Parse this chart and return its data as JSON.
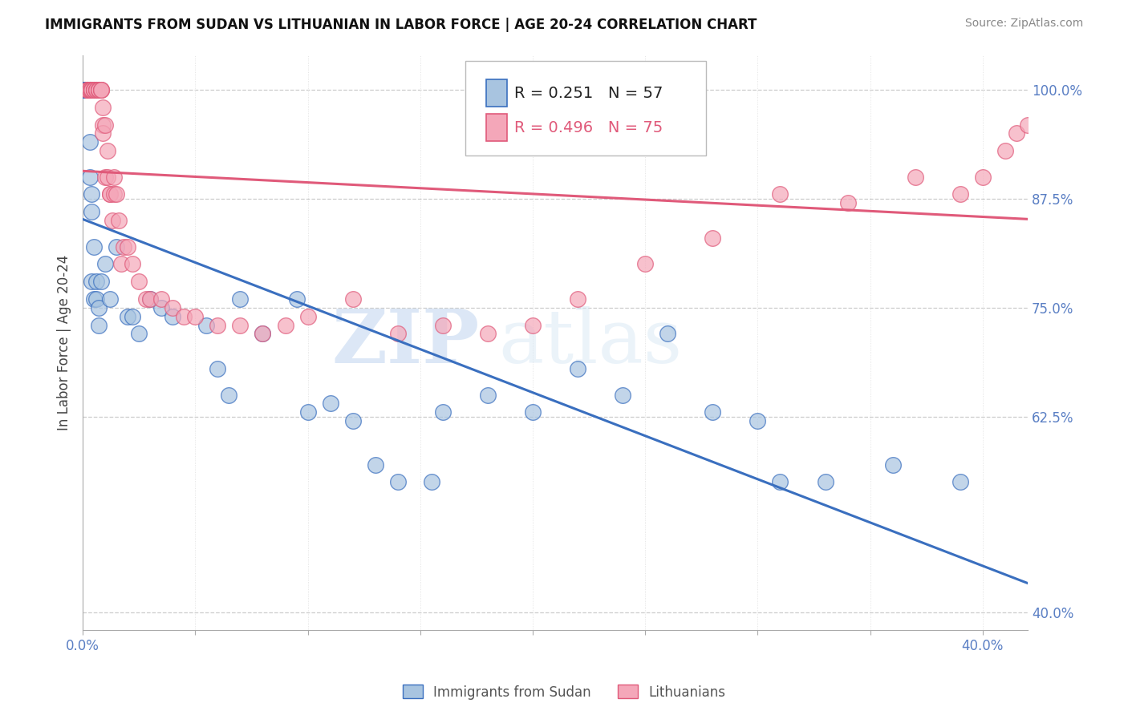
{
  "title": "IMMIGRANTS FROM SUDAN VS LITHUANIAN IN LABOR FORCE | AGE 20-24 CORRELATION CHART",
  "source": "Source: ZipAtlas.com",
  "ylabel": "In Labor Force | Age 20-24",
  "y_tick_labels_right": [
    "40.0%",
    "62.5%",
    "75.0%",
    "87.5%",
    "100.0%"
  ],
  "xlim": [
    0.0,
    0.42
  ],
  "ylim": [
    0.38,
    1.04
  ],
  "yticks_right": [
    0.4,
    0.625,
    0.75,
    0.875,
    1.0
  ],
  "xticks": [
    0.0,
    0.05,
    0.1,
    0.15,
    0.2,
    0.25,
    0.3,
    0.35,
    0.4
  ],
  "legend_r1": "0.251",
  "legend_n1": "57",
  "legend_r2": "0.496",
  "legend_n2": "75",
  "label1": "Immigrants from Sudan",
  "label2": "Lithuanians",
  "color1": "#a8c4e0",
  "color2": "#f4a7b9",
  "line_color1": "#3a6fbf",
  "line_color2": "#e05a7a",
  "axis_color": "#5a7fc4",
  "watermark_zip": "ZIP",
  "watermark_atlas": "atlas",
  "sudan_x": [
    0.001,
    0.001,
    0.001,
    0.001,
    0.002,
    0.002,
    0.002,
    0.002,
    0.002,
    0.003,
    0.003,
    0.003,
    0.003,
    0.003,
    0.004,
    0.004,
    0.004,
    0.005,
    0.005,
    0.006,
    0.006,
    0.007,
    0.007,
    0.008,
    0.01,
    0.012,
    0.015,
    0.02,
    0.022,
    0.025,
    0.03,
    0.035,
    0.04,
    0.055,
    0.06,
    0.065,
    0.07,
    0.08,
    0.095,
    0.1,
    0.11,
    0.12,
    0.13,
    0.14,
    0.155,
    0.16,
    0.18,
    0.2,
    0.22,
    0.24,
    0.26,
    0.28,
    0.3,
    0.31,
    0.33,
    0.36,
    0.39
  ],
  "sudan_y": [
    1.0,
    1.0,
    1.0,
    1.0,
    1.0,
    1.0,
    1.0,
    1.0,
    1.0,
    1.0,
    1.0,
    1.0,
    0.94,
    0.9,
    0.88,
    0.86,
    0.78,
    0.82,
    0.76,
    0.78,
    0.76,
    0.75,
    0.73,
    0.78,
    0.8,
    0.76,
    0.82,
    0.74,
    0.74,
    0.72,
    0.76,
    0.75,
    0.74,
    0.73,
    0.68,
    0.65,
    0.76,
    0.72,
    0.76,
    0.63,
    0.64,
    0.62,
    0.57,
    0.55,
    0.55,
    0.63,
    0.65,
    0.63,
    0.68,
    0.65,
    0.72,
    0.63,
    0.62,
    0.55,
    0.55,
    0.57,
    0.55
  ],
  "lith_x": [
    0.002,
    0.002,
    0.002,
    0.003,
    0.003,
    0.003,
    0.003,
    0.003,
    0.004,
    0.004,
    0.004,
    0.004,
    0.005,
    0.005,
    0.005,
    0.005,
    0.006,
    0.006,
    0.006,
    0.007,
    0.007,
    0.007,
    0.007,
    0.007,
    0.008,
    0.008,
    0.008,
    0.009,
    0.009,
    0.009,
    0.01,
    0.01,
    0.011,
    0.011,
    0.012,
    0.012,
    0.013,
    0.014,
    0.014,
    0.015,
    0.016,
    0.017,
    0.018,
    0.02,
    0.022,
    0.025,
    0.028,
    0.03,
    0.035,
    0.04,
    0.045,
    0.05,
    0.06,
    0.07,
    0.08,
    0.09,
    0.1,
    0.12,
    0.14,
    0.16,
    0.18,
    0.2,
    0.22,
    0.25,
    0.28,
    0.31,
    0.34,
    0.37,
    0.39,
    0.4,
    0.41,
    0.415,
    0.42,
    0.425,
    0.43
  ],
  "lith_y": [
    1.0,
    1.0,
    1.0,
    1.0,
    1.0,
    1.0,
    1.0,
    1.0,
    1.0,
    1.0,
    1.0,
    1.0,
    1.0,
    1.0,
    1.0,
    1.0,
    1.0,
    1.0,
    1.0,
    1.0,
    1.0,
    1.0,
    1.0,
    1.0,
    1.0,
    1.0,
    1.0,
    0.98,
    0.96,
    0.95,
    0.96,
    0.9,
    0.93,
    0.9,
    0.88,
    0.88,
    0.85,
    0.88,
    0.9,
    0.88,
    0.85,
    0.8,
    0.82,
    0.82,
    0.8,
    0.78,
    0.76,
    0.76,
    0.76,
    0.75,
    0.74,
    0.74,
    0.73,
    0.73,
    0.72,
    0.73,
    0.74,
    0.76,
    0.72,
    0.73,
    0.72,
    0.73,
    0.76,
    0.8,
    0.83,
    0.88,
    0.87,
    0.9,
    0.88,
    0.9,
    0.93,
    0.95,
    0.96,
    0.96,
    1.0
  ]
}
